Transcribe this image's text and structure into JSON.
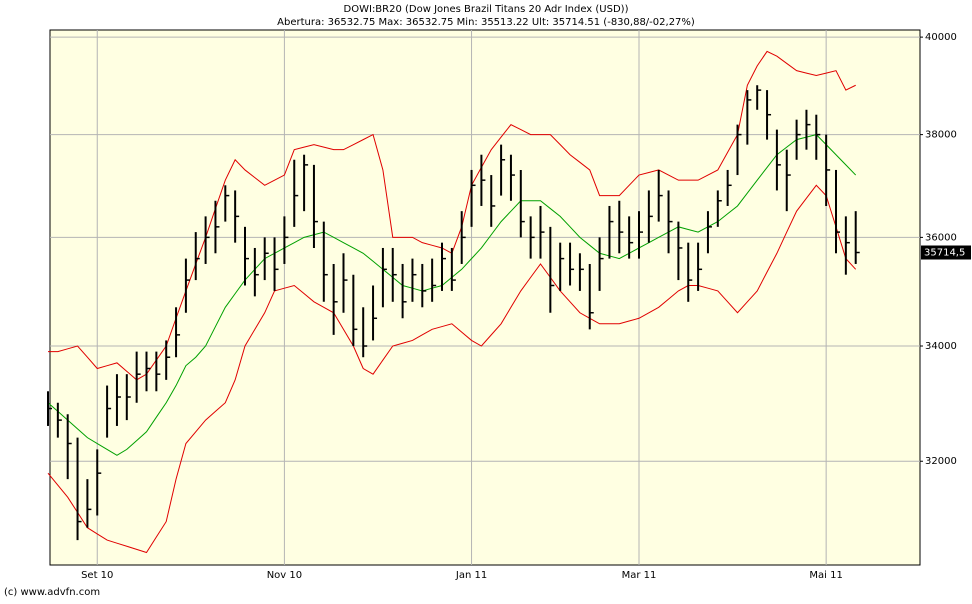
{
  "chart_data": {
    "type": "hlc",
    "title": "DOWI:BR20 (Dow Jones Brazil Titans 20 Adr Index (USD))",
    "subtitle": "Abertura: 36532.75 Max: 36532.75 Min: 35513.22 Ult: 35714.51 (-830,88/-02,27%)",
    "footer": "(c) www.advfn.com",
    "last_value_label": "35714,5",
    "log_scale": true,
    "grid": true,
    "ylim": [
      30300,
      40150
    ],
    "yticks": [
      32000,
      34000,
      36000,
      38000,
      40000
    ],
    "categories": [
      null,
      null,
      null,
      null,
      null,
      "Set 10",
      null,
      null,
      null,
      null,
      null,
      null,
      null,
      null,
      null,
      null,
      null,
      null,
      null,
      null,
      null,
      null,
      null,
      null,
      "Nov 10",
      null,
      null,
      null,
      null,
      null,
      null,
      null,
      null,
      null,
      null,
      null,
      null,
      null,
      null,
      null,
      null,
      null,
      null,
      "Jan 11",
      null,
      null,
      null,
      null,
      null,
      null,
      null,
      null,
      null,
      null,
      null,
      null,
      null,
      null,
      null,
      null,
      "Mar 11",
      null,
      null,
      null,
      null,
      null,
      null,
      null,
      null,
      null,
      null,
      null,
      null,
      null,
      null,
      null,
      null,
      null,
      null,
      "Mai 11",
      null,
      null,
      null
    ],
    "ohlc": {
      "color": "#000000",
      "high": [
        33200,
        33000,
        32800,
        32400,
        31700,
        32200,
        33300,
        33500,
        33500,
        33900,
        33900,
        33900,
        34100,
        34700,
        35600,
        36100,
        36400,
        36700,
        37000,
        36900,
        36200,
        35800,
        36000,
        36000,
        36400,
        37500,
        37600,
        37400,
        36300,
        35500,
        35700,
        35300,
        34700,
        35100,
        35800,
        35800,
        35500,
        35600,
        35500,
        35600,
        35900,
        35800,
        36500,
        37300,
        37600,
        37200,
        37800,
        37600,
        37300,
        36400,
        36600,
        36200,
        35900,
        35900,
        35700,
        35500,
        36000,
        36600,
        36700,
        36400,
        36500,
        36900,
        37300,
        36900,
        36300,
        35900,
        35900,
        36500,
        36900,
        37300,
        38200,
        38900,
        39000,
        38900,
        38100,
        37700,
        38300,
        38500,
        38400,
        38000,
        37300,
        36400,
        36500
      ],
      "low": [
        32600,
        32400,
        31700,
        30700,
        30900,
        31100,
        32400,
        32600,
        32700,
        33000,
        33200,
        33200,
        33400,
        33800,
        34600,
        35200,
        35500,
        35700,
        36300,
        35900,
        35100,
        34900,
        35200,
        35000,
        35500,
        36200,
        36500,
        35800,
        34800,
        34200,
        34600,
        34000,
        33800,
        34100,
        34700,
        34800,
        34500,
        34800,
        34700,
        34800,
        35000,
        35000,
        35500,
        36200,
        36600,
        36200,
        36800,
        36700,
        36000,
        35600,
        35600,
        34600,
        35000,
        35100,
        35000,
        34300,
        35000,
        35600,
        35700,
        35600,
        35600,
        35900,
        36300,
        35700,
        35200,
        34800,
        35000,
        35700,
        36200,
        36600,
        37200,
        37800,
        38500,
        37900,
        36900,
        36500,
        37500,
        37700,
        37500,
        36600,
        35700,
        35300,
        35500
      ],
      "close": [
        32900,
        32700,
        32300,
        31000,
        31200,
        31800,
        32900,
        33100,
        33100,
        33500,
        33600,
        33500,
        33800,
        34200,
        35200,
        35600,
        36000,
        36200,
        36800,
        36400,
        35600,
        35300,
        35700,
        35400,
        36000,
        36800,
        37400,
        36300,
        35300,
        34800,
        35200,
        34300,
        34000,
        34500,
        35400,
        35300,
        34800,
        35300,
        35000,
        35100,
        35600,
        35200,
        36000,
        37000,
        37100,
        36600,
        37500,
        37200,
        36300,
        36000,
        36100,
        35100,
        35600,
        35400,
        35400,
        34600,
        35600,
        36300,
        36100,
        35900,
        36100,
        36400,
        36800,
        36300,
        35800,
        35200,
        35400,
        36200,
        36700,
        37000,
        38000,
        38700,
        38900,
        38400,
        37400,
        37200,
        38000,
        38200,
        38000,
        37300,
        36100,
        35900,
        35714.5
      ]
    },
    "bands": [
      {
        "color": "#e00000",
        "values": [
          33900,
          33900,
          33950,
          34000,
          33800,
          33600,
          33650,
          33700,
          33550,
          33400,
          33500,
          33750,
          34000,
          34500,
          35000,
          35500,
          36000,
          36550,
          37100,
          37500,
          37300,
          37150,
          37000,
          37100,
          37200,
          37700,
          37750,
          37800,
          37750,
          37700,
          37700,
          37800,
          37900,
          38000,
          37300,
          36000,
          36000,
          36000,
          35900,
          35850,
          35800,
          35700,
          36200,
          37000,
          37350,
          37700,
          37950,
          38200,
          38100,
          38000,
          38000,
          38000,
          37800,
          37600,
          37450,
          37300,
          36800,
          36800,
          36800,
          37000,
          37200,
          37250,
          37300,
          37200,
          37100,
          37100,
          37100,
          37200,
          37300,
          37650,
          38000,
          39000,
          39400,
          39700,
          39600,
          39450,
          39300,
          39250,
          39200,
          39250,
          39300,
          38900,
          39000
        ]
      },
      {
        "color": "#00a000",
        "values": [
          33000,
          32850,
          32700,
          32550,
          32400,
          32300,
          32200,
          32100,
          32200,
          32350,
          32500,
          32750,
          33000,
          33300,
          33650,
          33800,
          34000,
          34350,
          34700,
          34950,
          35200,
          35400,
          35600,
          35700,
          35800,
          35900,
          36000,
          36050,
          36100,
          36000,
          35900,
          35800,
          35700,
          35550,
          35400,
          35250,
          35100,
          35050,
          35000,
          35050,
          35100,
          35250,
          35400,
          35600,
          35800,
          36050,
          36300,
          36500,
          36700,
          36700,
          36700,
          36550,
          36400,
          36200,
          36000,
          35850,
          35700,
          35650,
          35600,
          35700,
          35800,
          35900,
          36000,
          36100,
          36200,
          36150,
          36100,
          36200,
          36300,
          36450,
          36600,
          36850,
          37100,
          37350,
          37600,
          37750,
          37900,
          37950,
          38000,
          37800,
          37600,
          37400,
          37200
        ]
      },
      {
        "color": "#e00000",
        "values": [
          31800,
          31600,
          31400,
          31150,
          30900,
          30800,
          30700,
          30650,
          30600,
          30550,
          30500,
          30750,
          31000,
          31700,
          32300,
          32500,
          32700,
          32850,
          33000,
          33400,
          34000,
          34300,
          34600,
          35000,
          35050,
          35100,
          34950,
          34800,
          34700,
          34600,
          34300,
          34000,
          33600,
          33500,
          33750,
          34000,
          34050,
          34100,
          34200,
          34300,
          34350,
          34400,
          34250,
          34100,
          34000,
          34200,
          34400,
          34700,
          35000,
          35250,
          35500,
          35250,
          35000,
          34800,
          34600,
          34500,
          34400,
          34400,
          34400,
          34450,
          34500,
          34600,
          34700,
          34850,
          35000,
          35100,
          35100,
          35050,
          35000,
          34800,
          34600,
          34800,
          35000,
          35350,
          35700,
          36100,
          36500,
          36750,
          37000,
          36800,
          36200,
          35600,
          35400
        ]
      }
    ]
  }
}
